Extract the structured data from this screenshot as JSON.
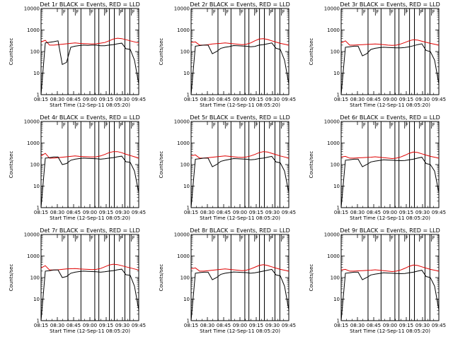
{
  "chart_data": [
    {
      "type": "line",
      "title": "Det 1r BLACK = Events, RED = LLD",
      "events": [
        0.0,
        2.4,
        2.43,
        2.46,
        2.5,
        1.4,
        1.5,
        2.2,
        2.25,
        2.28,
        2.3,
        2.29,
        2.3,
        2.3,
        2.27,
        2.27,
        2.3,
        2.32,
        2.36,
        2.39,
        2.13,
        2.1,
        1.6,
        0.5
      ],
      "lld": [
        2.45,
        2.52,
        2.3,
        2.3,
        2.32,
        2.34,
        2.36,
        2.38,
        2.4,
        2.38,
        2.37,
        2.36,
        2.35,
        2.36,
        2.39,
        2.42,
        2.5,
        2.58,
        2.62,
        2.6,
        2.55,
        2.5,
        2.45,
        2.4
      ]
    },
    {
      "type": "line",
      "title": "Det 2r BLACK = Events, RED = LLD",
      "events": [
        0.0,
        2.25,
        2.28,
        2.3,
        2.3,
        1.9,
        2.0,
        2.15,
        2.2,
        2.23,
        2.28,
        2.27,
        2.26,
        2.25,
        2.22,
        2.24,
        2.3,
        2.32,
        2.36,
        2.4,
        2.15,
        2.1,
        1.6,
        0.5
      ],
      "lld": [
        2.42,
        2.45,
        2.3,
        2.3,
        2.32,
        2.35,
        2.37,
        2.38,
        2.4,
        2.38,
        2.36,
        2.34,
        2.32,
        2.34,
        2.4,
        2.5,
        2.58,
        2.6,
        2.56,
        2.5,
        2.44,
        2.38,
        2.34,
        2.3
      ]
    },
    {
      "type": "line",
      "title": "Det 3r BLACK = Events, RED = LLD",
      "events": [
        0.0,
        2.2,
        2.22,
        2.25,
        2.25,
        1.8,
        1.9,
        2.1,
        2.15,
        2.18,
        2.2,
        2.19,
        2.18,
        2.17,
        2.17,
        2.19,
        2.22,
        2.27,
        2.32,
        2.36,
        2.05,
        2.0,
        1.6,
        0.5
      ],
      "lld": [
        2.4,
        2.5,
        2.3,
        2.3,
        2.31,
        2.32,
        2.33,
        2.34,
        2.35,
        2.34,
        2.32,
        2.3,
        2.29,
        2.3,
        2.35,
        2.42,
        2.5,
        2.55,
        2.53,
        2.48,
        2.43,
        2.38,
        2.34,
        2.3
      ]
    },
    {
      "type": "line",
      "title": "Det 4r BLACK = Events, RED = LLD",
      "events": [
        0.0,
        2.3,
        2.32,
        2.35,
        2.35,
        2.0,
        2.05,
        2.2,
        2.25,
        2.28,
        2.3,
        2.29,
        2.28,
        2.27,
        2.25,
        2.27,
        2.3,
        2.32,
        2.36,
        2.39,
        2.13,
        2.1,
        1.7,
        0.7
      ],
      "lld": [
        2.4,
        2.52,
        2.3,
        2.3,
        2.32,
        2.34,
        2.36,
        2.38,
        2.4,
        2.38,
        2.37,
        2.36,
        2.35,
        2.36,
        2.4,
        2.47,
        2.55,
        2.6,
        2.6,
        2.55,
        2.48,
        2.42,
        2.36,
        2.3
      ]
    },
    {
      "type": "line",
      "title": "Det 5r BLACK = Events, RED = LLD",
      "events": [
        0.0,
        2.25,
        2.27,
        2.3,
        2.3,
        1.9,
        2.0,
        2.15,
        2.2,
        2.24,
        2.28,
        2.27,
        2.26,
        2.25,
        2.22,
        2.24,
        2.28,
        2.3,
        2.34,
        2.38,
        2.12,
        2.08,
        1.7,
        0.7
      ],
      "lld": [
        2.4,
        2.45,
        2.3,
        2.3,
        2.32,
        2.34,
        2.36,
        2.38,
        2.4,
        2.38,
        2.36,
        2.34,
        2.33,
        2.35,
        2.4,
        2.47,
        2.55,
        2.6,
        2.58,
        2.52,
        2.46,
        2.4,
        2.35,
        2.3
      ]
    },
    {
      "type": "line",
      "title": "Det 6r BLACK = Events, RED = LLD",
      "events": [
        0.0,
        2.2,
        2.22,
        2.25,
        2.25,
        1.9,
        2.0,
        2.12,
        2.16,
        2.19,
        2.22,
        2.21,
        2.2,
        2.19,
        2.18,
        2.19,
        2.22,
        2.25,
        2.3,
        2.34,
        2.05,
        2.0,
        1.7,
        0.7
      ],
      "lld": [
        2.35,
        2.38,
        2.3,
        2.3,
        2.31,
        2.32,
        2.33,
        2.34,
        2.36,
        2.34,
        2.32,
        2.3,
        2.28,
        2.3,
        2.35,
        2.43,
        2.52,
        2.58,
        2.56,
        2.5,
        2.44,
        2.38,
        2.34,
        2.3
      ]
    },
    {
      "type": "line",
      "title": "Det 7r BLACK = Events, RED = LLD",
      "events": [
        0.0,
        2.3,
        2.32,
        2.35,
        2.35,
        2.0,
        2.05,
        2.2,
        2.25,
        2.28,
        2.3,
        2.29,
        2.28,
        2.27,
        2.25,
        2.27,
        2.3,
        2.32,
        2.36,
        2.39,
        2.13,
        2.1,
        1.6,
        0.5
      ],
      "lld": [
        2.45,
        2.55,
        2.35,
        2.35,
        2.36,
        2.38,
        2.4,
        2.41,
        2.42,
        2.4,
        2.39,
        2.38,
        2.37,
        2.38,
        2.42,
        2.5,
        2.58,
        2.62,
        2.6,
        2.55,
        2.5,
        2.45,
        2.4,
        2.35
      ]
    },
    {
      "type": "line",
      "title": "Det 8r BLACK = Events, RED = LLD",
      "events": [
        0.0,
        2.2,
        2.23,
        2.25,
        2.25,
        1.9,
        2.0,
        2.15,
        2.2,
        2.23,
        2.26,
        2.25,
        2.24,
        2.23,
        2.2,
        2.22,
        2.26,
        2.3,
        2.34,
        2.38,
        2.12,
        2.08,
        1.6,
        0.5
      ],
      "lld": [
        2.4,
        2.45,
        2.3,
        2.3,
        2.32,
        2.34,
        2.36,
        2.38,
        2.4,
        2.38,
        2.36,
        2.34,
        2.32,
        2.34,
        2.4,
        2.48,
        2.56,
        2.6,
        2.56,
        2.5,
        2.44,
        2.38,
        2.34,
        2.3
      ]
    },
    {
      "type": "line",
      "title": "Det 9r BLACK = Events, RED = LLD",
      "events": [
        0.0,
        2.2,
        2.22,
        2.25,
        2.25,
        1.9,
        2.0,
        2.12,
        2.16,
        2.19,
        2.22,
        2.21,
        2.2,
        2.19,
        2.18,
        2.19,
        2.22,
        2.25,
        2.3,
        2.34,
        2.05,
        2.0,
        1.6,
        0.5
      ],
      "lld": [
        2.35,
        2.38,
        2.3,
        2.3,
        2.31,
        2.32,
        2.33,
        2.34,
        2.36,
        2.34,
        2.32,
        2.3,
        2.28,
        2.3,
        2.35,
        2.43,
        2.52,
        2.58,
        2.56,
        2.5,
        2.44,
        2.38,
        2.34,
        2.3
      ]
    }
  ],
  "shared_axes": {
    "ylabel": "Counts/sec",
    "xlabel": "Start Time (12-Sep-11 08:05:20)",
    "y_scale": "log",
    "ylim": [
      1,
      10000
    ],
    "y_ticks": [
      "1",
      "10",
      "100",
      "1000",
      "10000"
    ],
    "x_ticks": [
      "08:15",
      "08:30",
      "08:45",
      "09:00",
      "09:15",
      "09:30",
      "09:45"
    ],
    "series_names": [
      "Events",
      "LLD"
    ],
    "series_colors": {
      "events": "#000000",
      "lld": "#e00000"
    },
    "time_markers": [
      1.65,
      2.45,
      3.3,
      3.55,
      4.2,
      4.5,
      5.15,
      5.45
    ],
    "flag_markers": [
      1.3,
      2.1,
      3.0,
      3.9,
      4.8,
      5.55
    ],
    "flag_letter": "F"
  }
}
